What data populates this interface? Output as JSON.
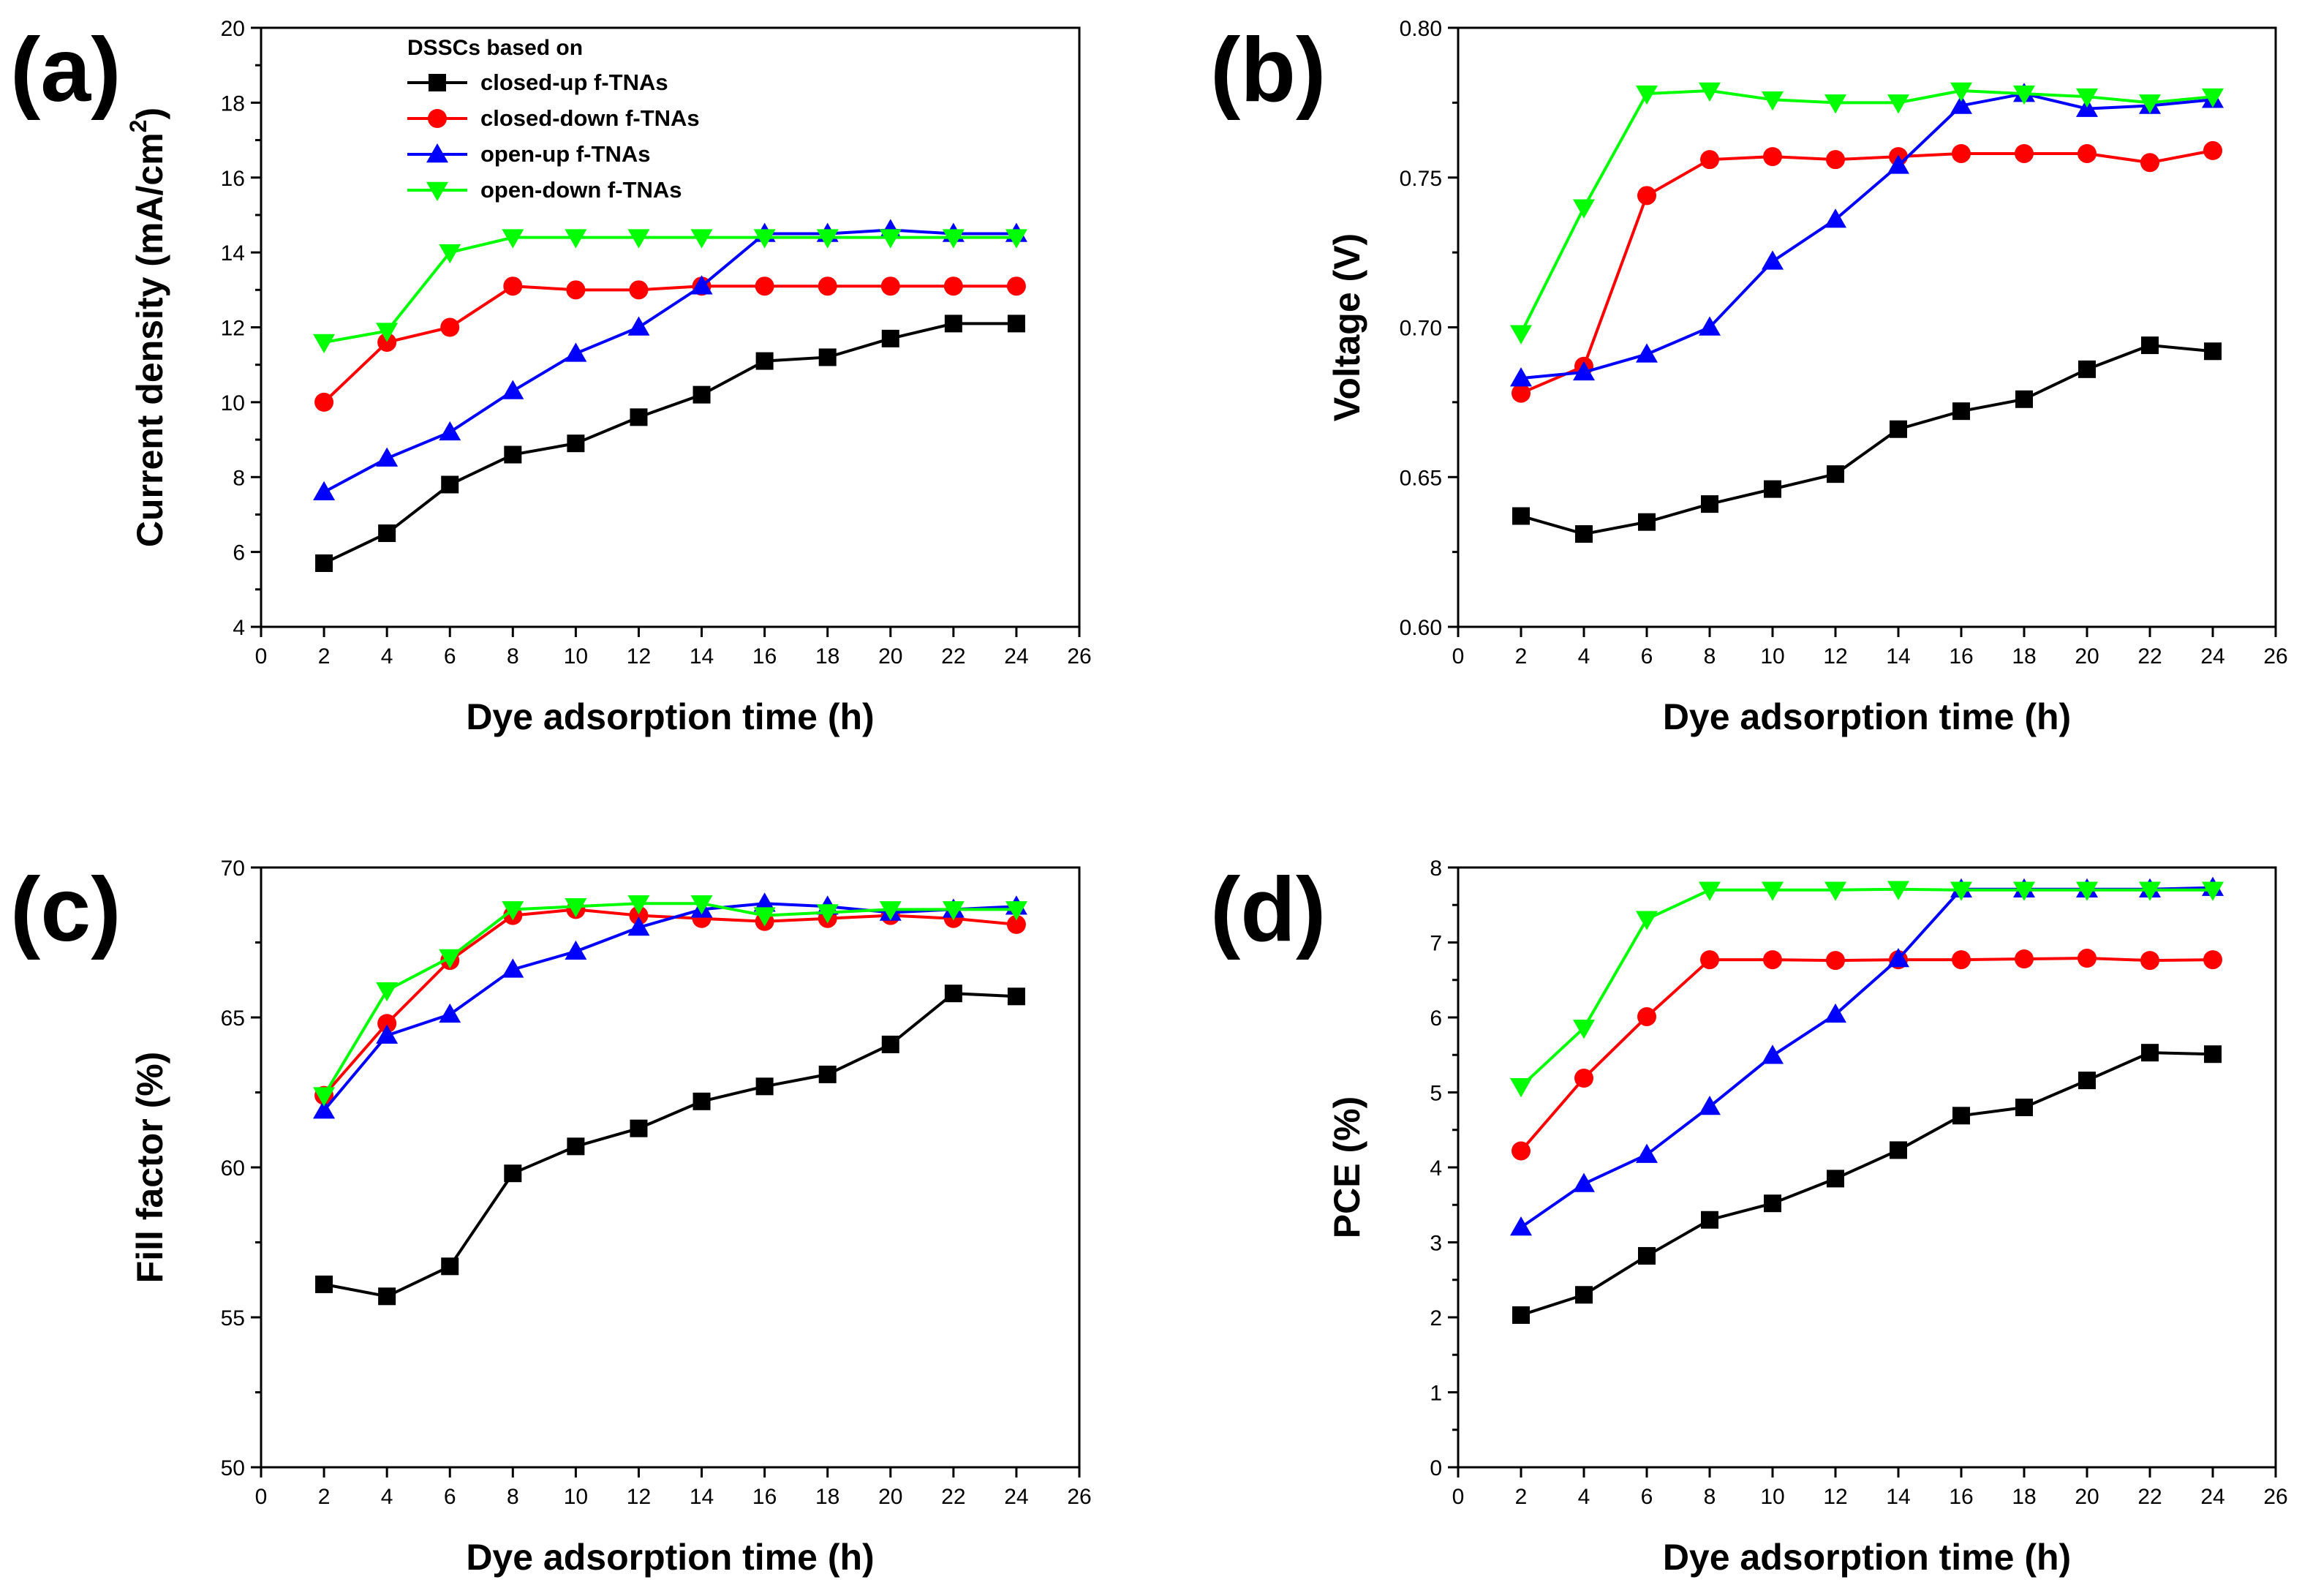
{
  "chart_data": [
    {
      "id": "a",
      "panel_label": "(a)",
      "type": "line",
      "xlabel": "Dye adsorption time (h)",
      "ylabel": "Current density (mA/cm",
      "ylabel_sup": "2",
      "ylabel_tail": ")",
      "xlim": [
        0,
        26
      ],
      "ylim": [
        4,
        20
      ],
      "xticks": [
        0,
        2,
        4,
        6,
        8,
        10,
        12,
        14,
        16,
        18,
        20,
        22,
        24,
        26
      ],
      "yticks": [
        4,
        6,
        8,
        10,
        12,
        14,
        16,
        18,
        20
      ],
      "ytick_labels": [
        "4",
        "6",
        "8",
        "10",
        "12",
        "14",
        "16",
        "18",
        "20"
      ],
      "x": [
        2,
        4,
        6,
        8,
        10,
        12,
        14,
        16,
        18,
        20,
        22,
        24
      ],
      "legend_title": "DSSCs based on",
      "legend_position": "top-left",
      "series": [
        {
          "name": "closed-up f-TNAs",
          "color": "#000000",
          "marker": "square",
          "values": [
            5.7,
            6.5,
            7.8,
            8.6,
            8.9,
            9.6,
            10.2,
            11.1,
            11.2,
            11.7,
            12.1,
            12.1
          ]
        },
        {
          "name": "closed-down f-TNAs",
          "color": "#ff0000",
          "marker": "circle",
          "values": [
            10.0,
            11.6,
            12.0,
            13.1,
            13.0,
            13.0,
            13.1,
            13.1,
            13.1,
            13.1,
            13.1,
            13.1
          ]
        },
        {
          "name": "open-up f-TNAs",
          "color": "#0000ff",
          "marker": "triangle-up",
          "values": [
            7.6,
            8.5,
            9.2,
            10.3,
            11.3,
            12.0,
            13.1,
            14.5,
            14.5,
            14.6,
            14.5,
            14.5
          ]
        },
        {
          "name": "open-down f-TNAs",
          "color": "#00ff00",
          "marker": "triangle-down",
          "values": [
            11.6,
            11.9,
            14.0,
            14.4,
            14.4,
            14.4,
            14.4,
            14.4,
            14.4,
            14.4,
            14.4,
            14.4
          ]
        }
      ]
    },
    {
      "id": "b",
      "panel_label": "(b)",
      "type": "line",
      "xlabel": "Dye adsorption time (h)",
      "ylabel": "Voltage (V)",
      "xlim": [
        0,
        26
      ],
      "ylim": [
        0.6,
        0.8
      ],
      "xticks": [
        0,
        2,
        4,
        6,
        8,
        10,
        12,
        14,
        16,
        18,
        20,
        22,
        24,
        26
      ],
      "yticks": [
        0.6,
        0.65,
        0.7,
        0.75,
        0.8
      ],
      "ytick_labels": [
        "0.60",
        "0.65",
        "0.70",
        "0.75",
        "0.80"
      ],
      "x": [
        2,
        4,
        6,
        8,
        10,
        12,
        14,
        16,
        18,
        20,
        22,
        24
      ],
      "series": [
        {
          "name": "closed-up f-TNAs",
          "color": "#000000",
          "marker": "square",
          "values": [
            0.637,
            0.631,
            0.635,
            0.641,
            0.646,
            0.651,
            0.666,
            0.672,
            0.676,
            0.686,
            0.694,
            0.692
          ]
        },
        {
          "name": "closed-down f-TNAs",
          "color": "#ff0000",
          "marker": "circle",
          "values": [
            0.678,
            0.687,
            0.744,
            0.756,
            0.757,
            0.756,
            0.757,
            0.758,
            0.758,
            0.758,
            0.755,
            0.759
          ]
        },
        {
          "name": "open-up f-TNAs",
          "color": "#0000ff",
          "marker": "triangle-up",
          "values": [
            0.683,
            0.685,
            0.691,
            0.7,
            0.722,
            0.736,
            0.754,
            0.774,
            0.778,
            0.773,
            0.774,
            0.776
          ]
        },
        {
          "name": "open-down f-TNAs",
          "color": "#00ff00",
          "marker": "triangle-down",
          "values": [
            0.698,
            0.74,
            0.778,
            0.779,
            0.776,
            0.775,
            0.775,
            0.779,
            0.778,
            0.777,
            0.775,
            0.777
          ]
        }
      ]
    },
    {
      "id": "c",
      "panel_label": "(c)",
      "type": "line",
      "xlabel": "Dye adsorption time (h)",
      "ylabel": "Fill factor (%)",
      "xlim": [
        0,
        26
      ],
      "ylim": [
        50,
        70
      ],
      "xticks": [
        0,
        2,
        4,
        6,
        8,
        10,
        12,
        14,
        16,
        18,
        20,
        22,
        24,
        26
      ],
      "yticks": [
        50,
        55,
        60,
        65,
        70
      ],
      "ytick_labels": [
        "50",
        "55",
        "60",
        "65",
        "70"
      ],
      "x": [
        2,
        4,
        6,
        8,
        10,
        12,
        14,
        16,
        18,
        20,
        22,
        24
      ],
      "series": [
        {
          "name": "closed-up f-TNAs",
          "color": "#000000",
          "marker": "square",
          "values": [
            56.1,
            55.7,
            56.7,
            59.8,
            60.7,
            61.3,
            62.2,
            62.7,
            63.1,
            64.1,
            65.8,
            65.7
          ]
        },
        {
          "name": "closed-down f-TNAs",
          "color": "#ff0000",
          "marker": "circle",
          "values": [
            62.4,
            64.8,
            66.9,
            68.4,
            68.6,
            68.4,
            68.3,
            68.2,
            68.3,
            68.4,
            68.3,
            68.1
          ]
        },
        {
          "name": "open-up f-TNAs",
          "color": "#0000ff",
          "marker": "triangle-up",
          "values": [
            61.9,
            64.4,
            65.1,
            66.6,
            67.2,
            68.0,
            68.6,
            68.8,
            68.7,
            68.5,
            68.6,
            68.7
          ]
        },
        {
          "name": "open-down f-TNAs",
          "color": "#00ff00",
          "marker": "triangle-down",
          "values": [
            62.4,
            65.9,
            67.0,
            68.6,
            68.7,
            68.8,
            68.8,
            68.4,
            68.5,
            68.6,
            68.6,
            68.6
          ]
        }
      ]
    },
    {
      "id": "d",
      "panel_label": "(d)",
      "type": "line",
      "xlabel": "Dye adsorption time (h)",
      "ylabel": "PCE (%)",
      "xlim": [
        0,
        26
      ],
      "ylim": [
        0,
        8
      ],
      "xticks": [
        0,
        2,
        4,
        6,
        8,
        10,
        12,
        14,
        16,
        18,
        20,
        22,
        24,
        26
      ],
      "yticks": [
        0,
        1,
        2,
        3,
        4,
        5,
        6,
        7,
        8
      ],
      "ytick_labels": [
        "0",
        "1",
        "2",
        "3",
        "4",
        "5",
        "6",
        "7",
        "8"
      ],
      "x": [
        2,
        4,
        6,
        8,
        10,
        12,
        14,
        16,
        18,
        20,
        22,
        24
      ],
      "series": [
        {
          "name": "closed-up f-TNAs",
          "color": "#000000",
          "marker": "square",
          "values": [
            2.03,
            2.3,
            2.82,
            3.3,
            3.52,
            3.85,
            4.23,
            4.69,
            4.8,
            5.16,
            5.53,
            5.51
          ]
        },
        {
          "name": "closed-down f-TNAs",
          "color": "#ff0000",
          "marker": "circle",
          "values": [
            4.22,
            5.19,
            6.01,
            6.77,
            6.77,
            6.76,
            6.77,
            6.77,
            6.78,
            6.79,
            6.76,
            6.77
          ]
        },
        {
          "name": "open-up f-TNAs",
          "color": "#0000ff",
          "marker": "triangle-up",
          "values": [
            3.2,
            3.78,
            4.17,
            4.81,
            5.49,
            6.04,
            6.78,
            7.71,
            7.71,
            7.71,
            7.71,
            7.73
          ]
        },
        {
          "name": "open-down f-TNAs",
          "color": "#00ff00",
          "marker": "triangle-down",
          "values": [
            5.08,
            5.86,
            7.31,
            7.7,
            7.7,
            7.7,
            7.71,
            7.7,
            7.7,
            7.7,
            7.7,
            7.7
          ]
        }
      ]
    }
  ]
}
